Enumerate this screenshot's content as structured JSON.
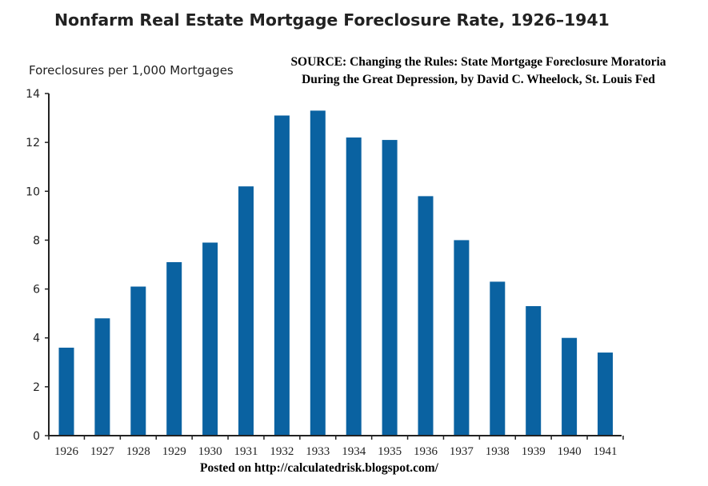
{
  "chart_data": {
    "type": "bar",
    "title": "Nonfarm Real Estate Mortgage Foreclosure Rate, 1926–1941",
    "ylabel": "Foreclosures per 1,000 Mortgages",
    "xlabel": "",
    "categories": [
      "1926",
      "1927",
      "1928",
      "1929",
      "1930",
      "1931",
      "1932",
      "1933",
      "1934",
      "1935",
      "1936",
      "1937",
      "1938",
      "1939",
      "1940",
      "1941"
    ],
    "values": [
      3.6,
      4.8,
      6.1,
      7.1,
      7.9,
      10.2,
      13.1,
      13.3,
      12.2,
      12.1,
      9.8,
      8.0,
      6.3,
      5.3,
      4.0,
      3.4
    ],
    "ylim": [
      0,
      14
    ],
    "yticks": [
      "0",
      "2",
      "4",
      "6",
      "8",
      "10",
      "12",
      "14"
    ],
    "grid": false,
    "bar_color": "#0a62a1"
  },
  "source": {
    "line1": "SOURCE: Changing the Rules: State Mortgage Foreclosure Moratoria",
    "line2": "During the Great Depression, by David C. Wheelock, St. Louis Fed"
  },
  "footer": {
    "posted": "Posted on http://calculatedrisk.blogspot.com/"
  }
}
